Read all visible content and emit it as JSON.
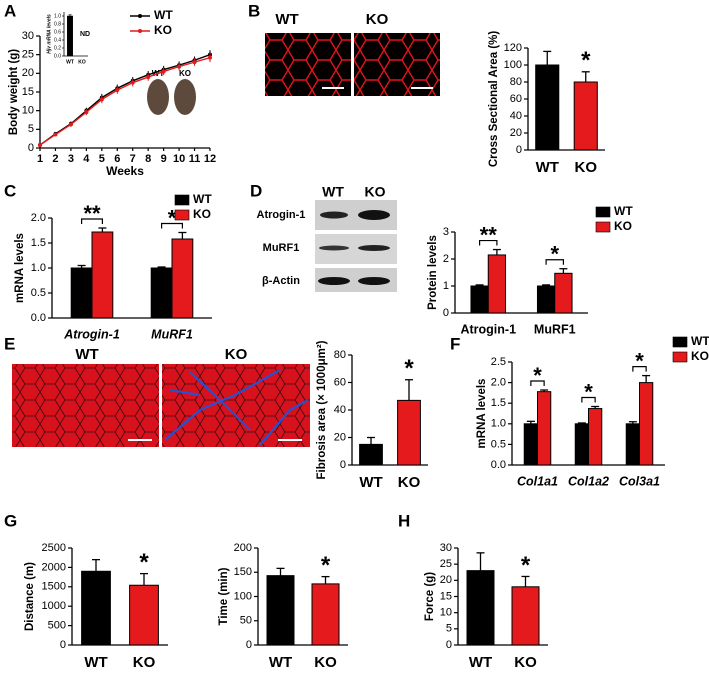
{
  "chart_data": [
    {
      "panel": "A",
      "type": "line",
      "ylabel": "Body weight (g)",
      "xlabel": "Weeks",
      "x": [
        1,
        2,
        3,
        4,
        5,
        6,
        7,
        8,
        9,
        10,
        11,
        12
      ],
      "xlim": [
        1,
        12
      ],
      "xticks": [
        1,
        2,
        3,
        4,
        5,
        6,
        7,
        8,
        9,
        10,
        11,
        12
      ],
      "ylim": [
        0,
        30
      ],
      "yticks": [
        0,
        5,
        10,
        15,
        20,
        25,
        30
      ],
      "series": [
        {
          "name": "WT",
          "color": "#000000",
          "values": [
            0.8,
            3.8,
            6.5,
            10,
            13.5,
            16,
            18,
            19.6,
            21,
            22.2,
            23.5,
            25
          ],
          "errors": [
            0.3,
            0.4,
            0.6,
            0.8,
            1,
            1,
            1,
            1,
            1,
            1,
            1,
            1.2
          ]
        },
        {
          "name": "KO",
          "color": "#e41a1c",
          "values": [
            0.8,
            3.6,
            6.3,
            9.6,
            13,
            15.5,
            17.5,
            19,
            20.5,
            21.8,
            23,
            24.2
          ],
          "errors": [
            0.3,
            0.4,
            0.6,
            0.8,
            1,
            1,
            1,
            1,
            1,
            1,
            1,
            1.2
          ]
        }
      ],
      "legend": "upper center",
      "image_labels": [
        "WT",
        "KO"
      ]
    },
    {
      "type": "bar",
      "ylabel": "Hjv mRNA levels",
      "categories": [
        "WT",
        "KO"
      ],
      "values": [
        1,
        null
      ],
      "value_labels": [
        null,
        "ND"
      ],
      "errors": [
        0.03,
        null
      ],
      "colors": [
        "#000000",
        "#000000"
      ],
      "ylim": [
        0,
        1.1
      ],
      "yticks": [
        {
          "value": 0,
          "label": "0.0"
        },
        {
          "value": 0.2,
          "label": "0.2"
        },
        {
          "value": 0.4,
          "label": "0.4"
        },
        {
          "value": 0.6,
          "label": "0.6"
        },
        {
          "value": 0.8,
          "label": "0.8"
        },
        {
          "value": 1,
          "label": "1.0"
        }
      ]
    },
    {
      "panel": "B",
      "type": "bar",
      "ylabel": "Cross Sectional Area (%)",
      "categories": [
        "WT",
        "KO"
      ],
      "values": [
        100,
        80
      ],
      "errors": [
        16,
        12
      ],
      "colors": [
        "#000000",
        "#e41a1c"
      ],
      "annotations": [
        null,
        "*"
      ],
      "ylim": [
        0,
        120
      ],
      "yticks": [
        0,
        20,
        40,
        60,
        80,
        100,
        120
      ],
      "image_labels": [
        "WT",
        "KO"
      ]
    },
    {
      "panel": "C",
      "type": "grouped-bar",
      "ylabel": "mRNA levels",
      "categories": [
        "Atrogin-1",
        "MuRF1"
      ],
      "italic_categories": true,
      "series": [
        {
          "name": "WT",
          "color": "#000000",
          "values": [
            1,
            1
          ],
          "errors": [
            0.05,
            0.02
          ]
        },
        {
          "name": "KO",
          "color": "#e41a1c",
          "values": [
            1.72,
            1.58
          ],
          "errors": [
            0.08,
            0.13
          ]
        }
      ],
      "annotations": [
        "**",
        "*"
      ],
      "ylim": [
        0,
        2
      ],
      "yticks": [
        {
          "value": 0,
          "label": "0.0"
        },
        {
          "value": 0.5,
          "label": "0.5"
        },
        {
          "value": 1,
          "label": "1.0"
        },
        {
          "value": 1.5,
          "label": "1.5"
        },
        {
          "value": 2,
          "label": "2.0"
        }
      ],
      "legend": "upper right"
    },
    {
      "panel": "D",
      "type": "grouped-bar",
      "ylabel": "Protein levels",
      "categories": [
        "Atrogin-1",
        "MuRF1"
      ],
      "italic_categories": false,
      "series": [
        {
          "name": "WT",
          "color": "#000000",
          "values": [
            1,
            1
          ],
          "errors": [
            0.04,
            0.04
          ]
        },
        {
          "name": "KO",
          "color": "#e41a1c",
          "values": [
            2.15,
            1.47
          ],
          "errors": [
            0.2,
            0.17
          ]
        }
      ],
      "annotations": [
        "**",
        "*"
      ],
      "ylim": [
        0,
        3
      ],
      "yticks": [
        0,
        1,
        2,
        3
      ],
      "legend": "outside right",
      "blot_lanes": [
        "WT",
        "KO"
      ],
      "blot_rows": [
        "Atrogin-1",
        "MuRF1",
        "β-Actin"
      ]
    },
    {
      "panel": "E",
      "type": "bar",
      "ylabel": "Fibrosis area (× 1000μm²)",
      "categories": [
        "WT",
        "KO"
      ],
      "values": [
        15,
        47
      ],
      "errors": [
        5,
        15
      ],
      "colors": [
        "#000000",
        "#e41a1c"
      ],
      "annotations": [
        null,
        "*"
      ],
      "ylim": [
        0,
        80
      ],
      "yticks": [
        0,
        20,
        40,
        60,
        80
      ],
      "image_labels": [
        "WT",
        "KO"
      ]
    },
    {
      "panel": "F",
      "type": "grouped-bar",
      "ylabel": "mRNA levels",
      "categories": [
        "Col1a1",
        "Col1a2",
        "Col3a1"
      ],
      "italic_categories": true,
      "series": [
        {
          "name": "WT",
          "color": "#000000",
          "values": [
            1,
            1,
            1
          ],
          "errors": [
            0.06,
            0.02,
            0.05
          ]
        },
        {
          "name": "KO",
          "color": "#e41a1c",
          "values": [
            1.78,
            1.37,
            2.0
          ],
          "errors": [
            0.04,
            0.05,
            0.17
          ]
        }
      ],
      "annotations": [
        "*",
        "*",
        "*"
      ],
      "ylim": [
        0,
        2.5
      ],
      "yticks": [
        {
          "value": 0,
          "label": "0.0"
        },
        {
          "value": 0.5,
          "label": "0.5"
        },
        {
          "value": 1,
          "label": "1.0"
        },
        {
          "value": 1.5,
          "label": "1.5"
        },
        {
          "value": 2,
          "label": "2.0"
        },
        {
          "value": 2.5,
          "label": "2.5"
        }
      ],
      "legend": "outside right"
    },
    {
      "panel": "G",
      "type": "bar",
      "ylabel": "Distance (m)",
      "categories": [
        "WT",
        "KO"
      ],
      "values": [
        1900,
        1540
      ],
      "errors": [
        300,
        300
      ],
      "colors": [
        "#000000",
        "#e41a1c"
      ],
      "annotations": [
        null,
        "*"
      ],
      "ylim": [
        0,
        2500
      ],
      "yticks": [
        0,
        500,
        1000,
        1500,
        2000,
        2500
      ]
    },
    {
      "type": "bar",
      "ylabel": "Time (min)",
      "categories": [
        "WT",
        "KO"
      ],
      "values": [
        143,
        126
      ],
      "errors": [
        15,
        15
      ],
      "colors": [
        "#000000",
        "#e41a1c"
      ],
      "annotations": [
        null,
        "*"
      ],
      "ylim": [
        0,
        200
      ],
      "yticks": [
        0,
        50,
        100,
        150,
        200
      ]
    },
    {
      "panel": "H",
      "type": "bar",
      "ylabel": "Force (g)",
      "categories": [
        "WT",
        "KO"
      ],
      "values": [
        23,
        18
      ],
      "errors": [
        5.5,
        3.2
      ],
      "colors": [
        "#000000",
        "#e41a1c"
      ],
      "annotations": [
        null,
        "*"
      ],
      "ylim": [
        0,
        30
      ],
      "yticks": [
        0,
        5,
        10,
        15,
        20,
        25,
        30
      ]
    }
  ]
}
